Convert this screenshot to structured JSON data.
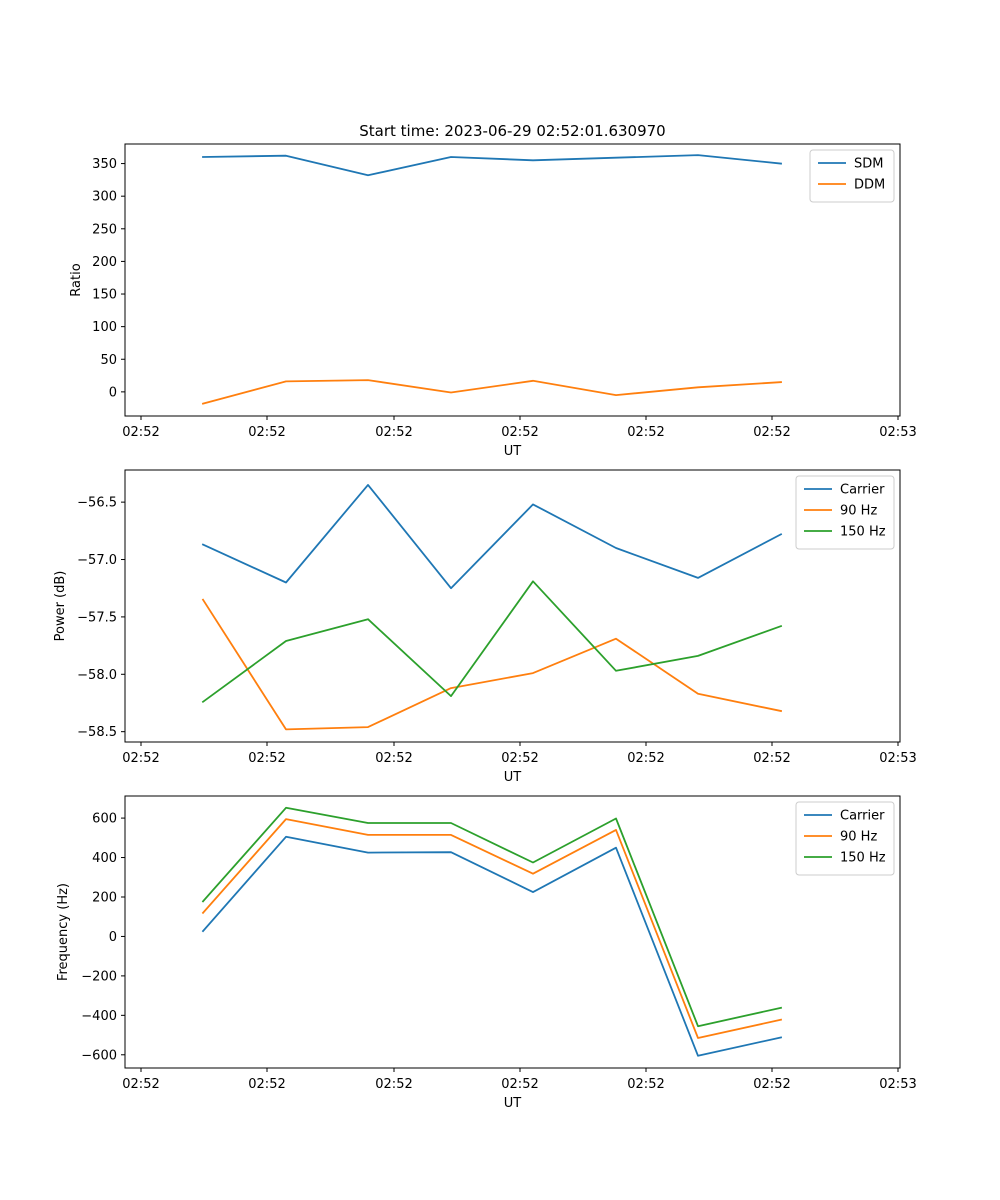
{
  "colors": {
    "blue": "#1f77b4",
    "orange": "#ff7f0e",
    "green": "#2ca02c"
  },
  "chart_data": [
    {
      "type": "line",
      "title": "Start time: 2023-06-29 02:52:01.630970",
      "xlabel": "UT",
      "ylabel": "Ratio",
      "x_tick_labels": [
        "02:52",
        "02:52",
        "02:52",
        "02:52",
        "02:52",
        "02:52",
        "02:53"
      ],
      "y_ticks": [
        0,
        50,
        100,
        150,
        200,
        250,
        300,
        350
      ],
      "ylim": [
        -37,
        380
      ],
      "legend": "top-right",
      "series": [
        {
          "name": "SDM",
          "color": "#1f77b4",
          "values": [
            360,
            362,
            332,
            360,
            355,
            359,
            363,
            350
          ]
        },
        {
          "name": "DDM",
          "color": "#ff7f0e",
          "values": [
            -18,
            16,
            18,
            -1,
            17,
            -5,
            7,
            15
          ]
        }
      ]
    },
    {
      "type": "line",
      "title": "",
      "xlabel": "UT",
      "ylabel": "Power (dB)",
      "x_tick_labels": [
        "02:52",
        "02:52",
        "02:52",
        "02:52",
        "02:52",
        "02:52",
        "02:53"
      ],
      "y_ticks": [
        -56.5,
        -57.0,
        -57.5,
        -58.0,
        -58.5
      ],
      "y_tick_labels": [
        "−56.5",
        "−57.0",
        "−57.5",
        "−58.0",
        "−58.5"
      ],
      "ylim": [
        -58.59,
        -56.22
      ],
      "legend": "top-right",
      "series": [
        {
          "name": "Carrier",
          "color": "#1f77b4",
          "values": [
            -56.87,
            -57.2,
            -56.35,
            -57.25,
            -56.52,
            -56.9,
            -57.16,
            -56.78
          ]
        },
        {
          "name": "90 Hz",
          "color": "#ff7f0e",
          "values": [
            -57.35,
            -58.48,
            -58.46,
            -58.12,
            -57.99,
            -57.69,
            -58.17,
            -58.32
          ]
        },
        {
          "name": "150 Hz",
          "color": "#2ca02c",
          "values": [
            -58.24,
            -57.71,
            -57.52,
            -58.19,
            -57.19,
            -57.97,
            -57.84,
            -57.58
          ]
        }
      ]
    },
    {
      "type": "line",
      "title": "",
      "xlabel": "UT",
      "ylabel": "Frequency (Hz)",
      "x_tick_labels": [
        "02:52",
        "02:52",
        "02:52",
        "02:52",
        "02:52",
        "02:52",
        "02:53"
      ],
      "y_ticks": [
        600,
        400,
        200,
        0,
        -200,
        -400,
        -600
      ],
      "y_tick_labels": [
        "600",
        "400",
        "200",
        "0",
        "−200",
        "−400",
        "−600"
      ],
      "ylim": [
        -667,
        712
      ],
      "legend": "top-right",
      "series": [
        {
          "name": "Carrier",
          "color": "#1f77b4",
          "values": [
            27,
            505,
            425,
            427,
            225,
            450,
            -605,
            -512
          ]
        },
        {
          "name": "90 Hz",
          "color": "#ff7f0e",
          "values": [
            120,
            595,
            515,
            515,
            318,
            540,
            -515,
            -422
          ]
        },
        {
          "name": "150 Hz",
          "color": "#2ca02c",
          "values": [
            178,
            652,
            575,
            575,
            375,
            598,
            -455,
            -362
          ]
        }
      ]
    }
  ]
}
